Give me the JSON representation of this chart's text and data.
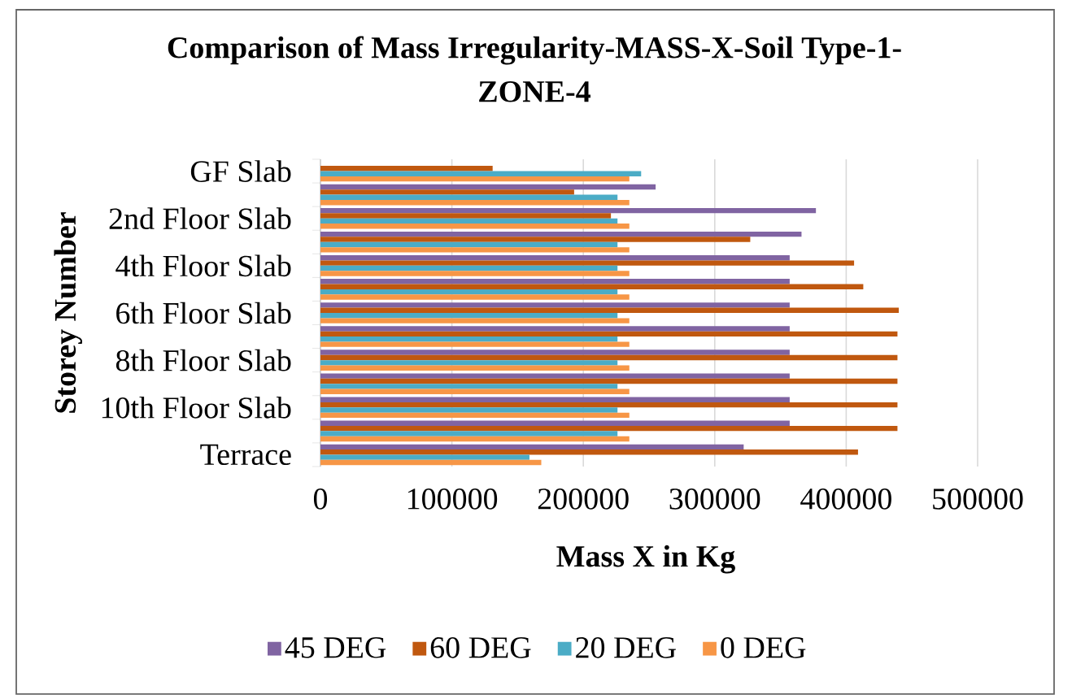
{
  "chart_data": {
    "type": "bar",
    "orientation": "horizontal",
    "title": "Comparison of Mass Irregularity-MASS-X-Soil Type-1-ZONE-4",
    "xlabel": "Mass X in Kg",
    "ylabel": "Storey Number",
    "categories": [
      "GF Slab",
      null,
      "2nd Floor Slab",
      null,
      "4th Floor Slab",
      null,
      "6th Floor Slab",
      null,
      "8th Floor Slab",
      null,
      "10th Floor Slab",
      null,
      "Terrace"
    ],
    "series": [
      {
        "name": "45 DEG",
        "color": "#8064a2",
        "values": [
          null,
          255000,
          377000,
          366000,
          357000,
          357000,
          357000,
          357000,
          357000,
          357000,
          357000,
          357000,
          322000
        ]
      },
      {
        "name": "60 DEG",
        "color": "#c0580f",
        "values": [
          131000,
          193000,
          221000,
          327000,
          406000,
          413000,
          440000,
          439000,
          439000,
          439000,
          439000,
          439000,
          409000
        ]
      },
      {
        "name": "20 DEG",
        "color": "#4bacc6",
        "values": [
          244000,
          226000,
          226000,
          226000,
          226000,
          226000,
          226000,
          226000,
          226000,
          226000,
          226000,
          226000,
          159000
        ]
      },
      {
        "name": "0 DEG",
        "color": "#f79646",
        "values": [
          235000,
          235000,
          235000,
          235000,
          235000,
          235000,
          235000,
          235000,
          235000,
          235000,
          235000,
          235000,
          168000
        ]
      }
    ],
    "xlim": [
      0,
      500000
    ],
    "xticks": [
      0,
      100000,
      200000,
      300000,
      400000,
      500000
    ],
    "grid": "x",
    "legend": "bottom"
  }
}
